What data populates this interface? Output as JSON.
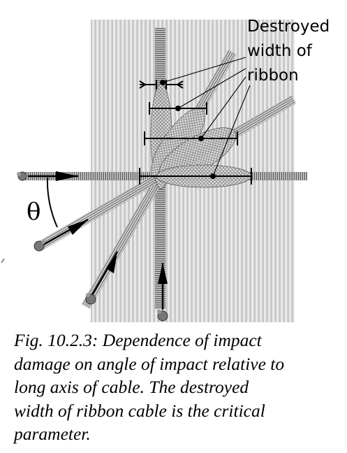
{
  "figure": {
    "annotation_label_lines": [
      "Destroyed",
      "width of",
      "ribbon"
    ],
    "angle_symbol": "θ"
  },
  "caption": {
    "lines": [
      "Fig. 10.2.3: Dependence of impact",
      "damage on angle of impact relative to",
      "long axis of cable.  The destroyed",
      "width of ribbon cable is the critical",
      "parameter."
    ]
  }
}
